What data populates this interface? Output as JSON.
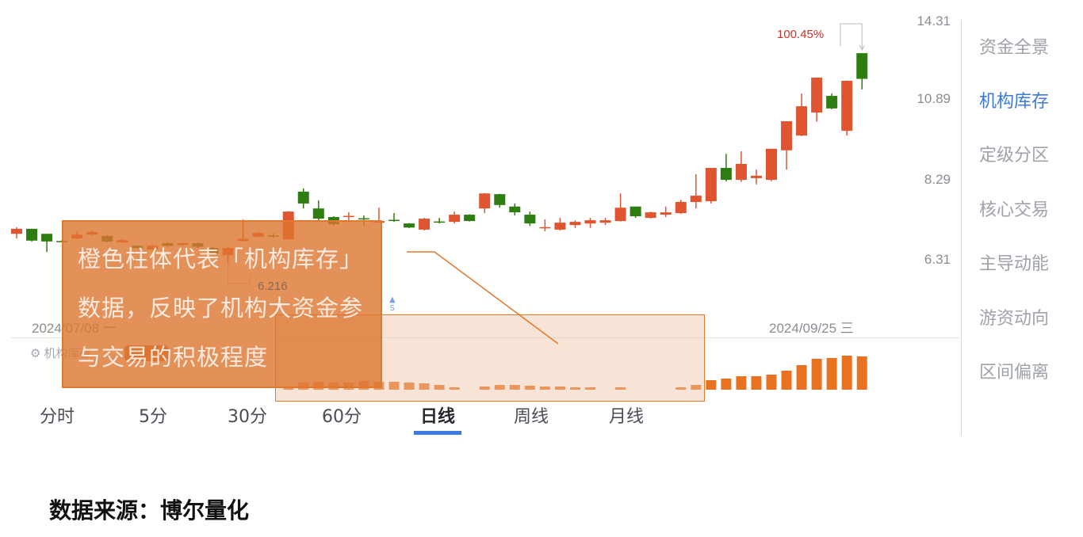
{
  "chart_data": {
    "type": "candlestick",
    "y_scale": "log",
    "y_ticks": [
      "14.31",
      "10.89",
      "8.29",
      "6.31"
    ],
    "x_range_labels": {
      "start": "2024/07/08 一",
      "end": "2024/09/25 三"
    },
    "colors": {
      "up": "#e05530",
      "down": "#2e7d10",
      "volume": "#e8721f"
    },
    "candles": [
      {
        "o": 6.9,
        "h": 7.06,
        "l": 6.79,
        "c": 7.02
      },
      {
        "o": 7.02,
        "h": 7.02,
        "l": 6.72,
        "c": 6.74
      },
      {
        "o": 6.9,
        "h": 6.9,
        "l": 6.48,
        "c": 6.72
      },
      {
        "o": 6.73,
        "h": 6.75,
        "l": 6.7,
        "c": 6.72
      },
      {
        "o": 6.79,
        "h": 6.96,
        "l": 6.77,
        "c": 6.88
      },
      {
        "o": 6.88,
        "h": 6.98,
        "l": 6.86,
        "c": 6.94
      },
      {
        "o": 6.85,
        "h": 6.87,
        "l": 6.7,
        "c": 6.72
      },
      {
        "o": 6.7,
        "h": 6.78,
        "l": 6.68,
        "c": 6.75
      },
      {
        "o": 6.62,
        "h": 6.64,
        "l": 6.55,
        "c": 6.57
      },
      {
        "o": 6.54,
        "h": 6.65,
        "l": 6.52,
        "c": 6.62
      },
      {
        "o": 6.68,
        "h": 6.7,
        "l": 6.6,
        "c": 6.62
      },
      {
        "o": 6.64,
        "h": 6.7,
        "l": 6.62,
        "c": 6.68
      },
      {
        "o": 6.68,
        "h": 6.7,
        "l": 6.57,
        "c": 6.6
      },
      {
        "o": 6.57,
        "h": 6.59,
        "l": 6.43,
        "c": 6.45
      },
      {
        "o": 6.41,
        "h": 6.59,
        "l": 6.216,
        "c": 6.57
      },
      {
        "o": 6.73,
        "h": 7.25,
        "l": 6.71,
        "c": 6.78
      },
      {
        "o": 6.83,
        "h": 6.95,
        "l": 6.81,
        "c": 6.92
      },
      {
        "o": 6.86,
        "h": 6.9,
        "l": 6.8,
        "c": 6.84
      },
      {
        "o": 6.77,
        "h": 7.46,
        "l": 6.76,
        "c": 7.45
      },
      {
        "o": 7.98,
        "h": 8.07,
        "l": 7.53,
        "c": 7.66
      },
      {
        "o": 7.53,
        "h": 7.74,
        "l": 7.21,
        "c": 7.27
      },
      {
        "o": 7.31,
        "h": 7.33,
        "l": 7.1,
        "c": 7.13
      },
      {
        "o": 7.32,
        "h": 7.43,
        "l": 7.17,
        "c": 7.34
      },
      {
        "o": 7.28,
        "h": 7.35,
        "l": 7.09,
        "c": 7.27
      },
      {
        "o": 7.17,
        "h": 7.55,
        "l": 7.17,
        "c": 7.21
      },
      {
        "o": 7.24,
        "h": 7.41,
        "l": 7.19,
        "c": 7.23
      },
      {
        "o": 7.15,
        "h": 7.16,
        "l": 7.04,
        "c": 7.05
      },
      {
        "o": 7.0,
        "h": 7.29,
        "l": 6.98,
        "c": 7.27
      },
      {
        "o": 7.2,
        "h": 7.29,
        "l": 7.15,
        "c": 7.19
      },
      {
        "o": 7.19,
        "h": 7.45,
        "l": 7.15,
        "c": 7.37
      },
      {
        "o": 7.37,
        "h": 7.38,
        "l": 7.2,
        "c": 7.21
      },
      {
        "o": 7.53,
        "h": 7.94,
        "l": 7.41,
        "c": 7.93
      },
      {
        "o": 7.91,
        "h": 7.92,
        "l": 7.55,
        "c": 7.62
      },
      {
        "o": 7.58,
        "h": 7.66,
        "l": 7.35,
        "c": 7.43
      },
      {
        "o": 7.37,
        "h": 7.45,
        "l": 7.09,
        "c": 7.15
      },
      {
        "o": 7.05,
        "h": 7.25,
        "l": 6.96,
        "c": 7.06
      },
      {
        "o": 7.0,
        "h": 7.29,
        "l": 6.98,
        "c": 7.17
      },
      {
        "o": 7.11,
        "h": 7.23,
        "l": 7.04,
        "c": 7.19
      },
      {
        "o": 7.15,
        "h": 7.29,
        "l": 7.04,
        "c": 7.23
      },
      {
        "o": 7.17,
        "h": 7.29,
        "l": 7.11,
        "c": 7.23
      },
      {
        "o": 7.21,
        "h": 7.93,
        "l": 7.2,
        "c": 7.55
      },
      {
        "o": 7.58,
        "h": 7.58,
        "l": 7.29,
        "c": 7.33
      },
      {
        "o": 7.29,
        "h": 7.45,
        "l": 7.27,
        "c": 7.43
      },
      {
        "o": 7.37,
        "h": 7.58,
        "l": 7.31,
        "c": 7.43
      },
      {
        "o": 7.41,
        "h": 7.76,
        "l": 7.39,
        "c": 7.7
      },
      {
        "o": 7.7,
        "h": 8.47,
        "l": 7.53,
        "c": 7.87
      },
      {
        "o": 7.72,
        "h": 8.66,
        "l": 7.66,
        "c": 8.66
      },
      {
        "o": 8.66,
        "h": 9.09,
        "l": 8.27,
        "c": 8.31
      },
      {
        "o": 8.31,
        "h": 9.17,
        "l": 8.25,
        "c": 8.78
      },
      {
        "o": 8.36,
        "h": 8.61,
        "l": 8.18,
        "c": 8.43
      },
      {
        "o": 8.31,
        "h": 9.25,
        "l": 8.27,
        "c": 9.25
      },
      {
        "o": 9.2,
        "h": 10.17,
        "l": 8.61,
        "c": 10.17
      },
      {
        "o": 9.68,
        "h": 11.19,
        "l": 9.66,
        "c": 10.71
      },
      {
        "o": 10.48,
        "h": 11.83,
        "l": 10.16,
        "c": 11.82
      },
      {
        "o": 11.1,
        "h": 11.19,
        "l": 10.6,
        "c": 10.63
      },
      {
        "o": 9.84,
        "h": 11.7,
        "l": 9.68,
        "c": 11.69
      },
      {
        "o": 12.86,
        "h": 12.86,
        "l": 11.35,
        "c": 11.77
      }
    ],
    "inventory": [
      0,
      0,
      0,
      0,
      0,
      0,
      0,
      0,
      0,
      0,
      0,
      0,
      0,
      0,
      0,
      0,
      0,
      0,
      4,
      9,
      10,
      9,
      9,
      11,
      10,
      10,
      9,
      8,
      6,
      3,
      0,
      4,
      6,
      6,
      5,
      4,
      4,
      3,
      3,
      0,
      3,
      0,
      0,
      0,
      3,
      6,
      12,
      14,
      17,
      17,
      19,
      24,
      31,
      39,
      40,
      43,
      42
    ],
    "annotations": {
      "low_label": "6.216",
      "gain_label": "100.45%",
      "signal": "S"
    }
  },
  "legend": {
    "label": "机构库存"
  },
  "overlay": {
    "text": "橙色柱体代表「机构库存」数据，反映了机构大资金参与交易的积极程度"
  },
  "tabs": [
    {
      "label": "分时"
    },
    {
      "label": "5分"
    },
    {
      "label": "30分"
    },
    {
      "label": "60分"
    },
    {
      "label": "日线",
      "active": true
    },
    {
      "label": "周线"
    },
    {
      "label": "月线"
    }
  ],
  "sidebar": {
    "items": [
      {
        "label": "资金全景"
      },
      {
        "label": "机构库存",
        "active": true
      },
      {
        "label": "定级分区"
      },
      {
        "label": "核心交易"
      },
      {
        "label": "主导动能"
      },
      {
        "label": "游资动向"
      },
      {
        "label": "区间偏离"
      }
    ]
  },
  "footer": {
    "source": "数据来源：博尔量化"
  }
}
